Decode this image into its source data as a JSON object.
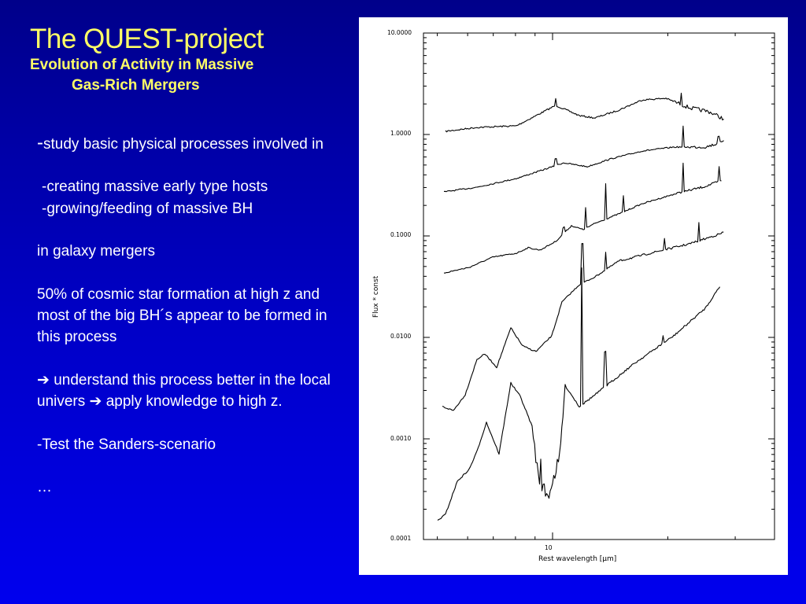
{
  "slide": {
    "title": "The QUEST-project",
    "subtitle_line1": "Evolution of Activity in Massive",
    "subtitle_line2": "Gas-Rich Mergers"
  },
  "body": {
    "dash": "-",
    "p1": "study basic physical processes involved in",
    "p2": "-creating massive early type hosts",
    "p3": "-growing/feeding of massive BH",
    "p4": "in galaxy mergers",
    "p5": "50% of cosmic star formation at high z and most of the big BH´s appear to be formed in this process",
    "arrow": "➔",
    "p6a": "understand this process better in the local univers",
    "p6b": "apply knowledge to high z.",
    "p7": "-Test the Sanders-scenario",
    "p8": "…"
  },
  "figure": {
    "y_axis_label": "Flux * const",
    "x_axis_label": "Rest wavelength [μm]",
    "y_tick_labels": [
      "10.0000",
      "1.0000",
      "0.1000",
      "0.0100",
      "0.0010",
      "0.0001"
    ],
    "x_tick_labels": [
      "10"
    ]
  }
}
